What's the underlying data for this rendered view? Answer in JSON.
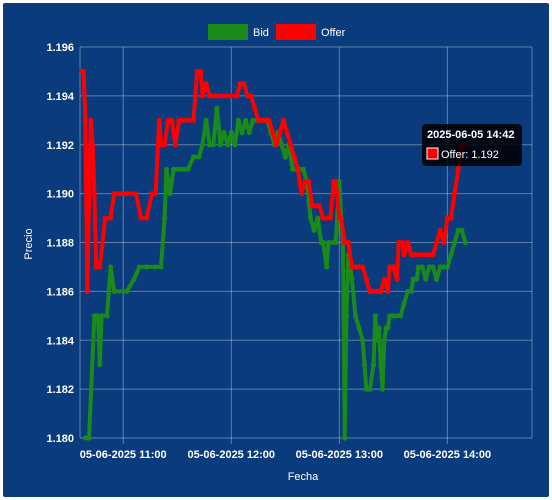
{
  "chart_data": {
    "type": "line",
    "xlabel": "Fecha",
    "ylabel": "Precio",
    "ylim": [
      1.18,
      1.196
    ],
    "yticks": [
      "1.180",
      "1.182",
      "1.184",
      "1.186",
      "1.188",
      "1.190",
      "1.192",
      "1.194",
      "1.196"
    ],
    "xlim": [
      "10:36",
      "14:47"
    ],
    "xticks": [
      {
        "time": "11:00",
        "label": "05-06-2025 11:00"
      },
      {
        "time": "12:00",
        "label": "05-06-2025 12:00"
      },
      {
        "time": "13:00",
        "label": "05-06-2025 13:00"
      },
      {
        "time": "14:00",
        "label": "05-06-2025 14:00"
      }
    ],
    "grid": true,
    "legend_position": "top-center",
    "series": [
      {
        "name": "Bid",
        "color": "#1a8a1a",
        "points": [
          [
            "10:39",
            1.18
          ],
          [
            "10:41",
            1.18
          ],
          [
            "10:44",
            1.185
          ],
          [
            "10:46",
            1.185
          ],
          [
            "10:47",
            1.183
          ],
          [
            "10:48",
            1.185
          ],
          [
            "10:51",
            1.185
          ],
          [
            "10:53",
            1.187
          ],
          [
            "10:55",
            1.186
          ],
          [
            "11:02",
            1.186
          ],
          [
            "11:06",
            1.1865
          ],
          [
            "11:09",
            1.187
          ],
          [
            "11:13",
            1.187
          ],
          [
            "11:18",
            1.187
          ],
          [
            "11:21",
            1.187
          ],
          [
            "11:23",
            1.189
          ],
          [
            "11:24",
            1.191
          ],
          [
            "11:26",
            1.19
          ],
          [
            "11:28",
            1.191
          ],
          [
            "11:31",
            1.191
          ],
          [
            "11:34",
            1.191
          ],
          [
            "11:36",
            1.191
          ],
          [
            "11:39",
            1.1915
          ],
          [
            "11:42",
            1.1915
          ],
          [
            "11:44",
            1.192
          ],
          [
            "11:46",
            1.193
          ],
          [
            "11:48",
            1.192
          ],
          [
            "11:50",
            1.192
          ],
          [
            "11:52",
            1.1935
          ],
          [
            "11:54",
            1.192
          ],
          [
            "11:56",
            1.1925
          ],
          [
            "11:58",
            1.192
          ],
          [
            "12:00",
            1.1925
          ],
          [
            "12:02",
            1.192
          ],
          [
            "12:04",
            1.193
          ],
          [
            "12:06",
            1.1925
          ],
          [
            "12:08",
            1.193
          ],
          [
            "12:10",
            1.1925
          ],
          [
            "12:12",
            1.193
          ],
          [
            "12:14",
            1.193
          ],
          [
            "12:16",
            1.193
          ],
          [
            "12:18",
            1.193
          ],
          [
            "12:20",
            1.193
          ],
          [
            "12:22",
            1.1925
          ],
          [
            "12:24",
            1.192
          ],
          [
            "12:26",
            1.1925
          ],
          [
            "12:28",
            1.192
          ],
          [
            "12:30",
            1.1915
          ],
          [
            "12:32",
            1.192
          ],
          [
            "12:34",
            1.191
          ],
          [
            "12:36",
            1.191
          ],
          [
            "12:38",
            1.191
          ],
          [
            "12:40",
            1.191
          ],
          [
            "12:42",
            1.1905
          ],
          [
            "12:44",
            1.189
          ],
          [
            "12:46",
            1.1885
          ],
          [
            "12:48",
            1.189
          ],
          [
            "12:50",
            1.188
          ],
          [
            "12:51",
            1.188
          ],
          [
            "12:53",
            1.187
          ],
          [
            "12:54",
            1.188
          ],
          [
            "12:57",
            1.188
          ],
          [
            "12:58",
            1.188
          ],
          [
            "13:00",
            1.1905
          ],
          [
            "13:01",
            1.189
          ],
          [
            "13:02",
            1.188
          ],
          [
            "13:03",
            1.18
          ],
          [
            "13:04",
            1.185
          ],
          [
            "13:05",
            1.1875
          ],
          [
            "13:07",
            1.1865
          ],
          [
            "13:09",
            1.185
          ],
          [
            "13:11",
            1.1845
          ],
          [
            "13:13",
            1.184
          ],
          [
            "13:14",
            1.183
          ],
          [
            "13:15",
            1.182
          ],
          [
            "13:17",
            1.182
          ],
          [
            "13:19",
            1.183
          ],
          [
            "13:20",
            1.185
          ],
          [
            "13:21",
            1.184
          ],
          [
            "13:22",
            1.1845
          ],
          [
            "13:23",
            1.183
          ],
          [
            "13:24",
            1.182
          ],
          [
            "13:25",
            1.184
          ],
          [
            "13:26",
            1.1845
          ],
          [
            "13:27",
            1.1845
          ],
          [
            "13:28",
            1.185
          ],
          [
            "13:30",
            1.185
          ],
          [
            "13:32",
            1.185
          ],
          [
            "13:34",
            1.185
          ],
          [
            "13:36",
            1.1855
          ],
          [
            "13:38",
            1.186
          ],
          [
            "13:40",
            1.186
          ],
          [
            "13:41",
            1.1865
          ],
          [
            "13:43",
            1.1865
          ],
          [
            "13:44",
            1.187
          ],
          [
            "13:46",
            1.187
          ],
          [
            "13:48",
            1.1865
          ],
          [
            "13:50",
            1.187
          ],
          [
            "13:52",
            1.187
          ],
          [
            "13:54",
            1.1865
          ],
          [
            "13:56",
            1.187
          ],
          [
            "13:58",
            1.187
          ],
          [
            "14:00",
            1.187
          ],
          [
            "14:02",
            1.1875
          ],
          [
            "14:04",
            1.188
          ],
          [
            "14:06",
            1.1885
          ],
          [
            "14:08",
            1.1885
          ],
          [
            "14:10",
            1.188
          ]
        ]
      },
      {
        "name": "Offer",
        "color": "#ff0000",
        "points": [
          [
            "10:37",
            1.195
          ],
          [
            "10:38",
            1.195
          ],
          [
            "10:39",
            1.193
          ],
          [
            "10:40",
            1.186
          ],
          [
            "10:42",
            1.193
          ],
          [
            "10:43",
            1.192
          ],
          [
            "10:44",
            1.19
          ],
          [
            "10:45",
            1.187
          ],
          [
            "10:47",
            1.187
          ],
          [
            "10:50",
            1.189
          ],
          [
            "10:53",
            1.189
          ],
          [
            "10:55",
            1.19
          ],
          [
            "10:58",
            1.19
          ],
          [
            "11:02",
            1.19
          ],
          [
            "11:07",
            1.19
          ],
          [
            "11:10",
            1.189
          ],
          [
            "11:13",
            1.189
          ],
          [
            "11:16",
            1.19
          ],
          [
            "11:18",
            1.19
          ],
          [
            "11:20",
            1.193
          ],
          [
            "11:21",
            1.192
          ],
          [
            "11:23",
            1.192
          ],
          [
            "11:25",
            1.193
          ],
          [
            "11:27",
            1.193
          ],
          [
            "11:29",
            1.192
          ],
          [
            "11:31",
            1.193
          ],
          [
            "11:33",
            1.193
          ],
          [
            "11:36",
            1.193
          ],
          [
            "11:39",
            1.193
          ],
          [
            "11:41",
            1.195
          ],
          [
            "11:43",
            1.195
          ],
          [
            "11:44",
            1.194
          ],
          [
            "11:46",
            1.1945
          ],
          [
            "11:48",
            1.194
          ],
          [
            "11:51",
            1.194
          ],
          [
            "11:54",
            1.194
          ],
          [
            "11:57",
            1.194
          ],
          [
            "12:00",
            1.194
          ],
          [
            "12:03",
            1.194
          ],
          [
            "12:05",
            1.1945
          ],
          [
            "12:07",
            1.1945
          ],
          [
            "12:09",
            1.194
          ],
          [
            "12:11",
            1.194
          ],
          [
            "12:13",
            1.1935
          ],
          [
            "12:15",
            1.193
          ],
          [
            "12:17",
            1.193
          ],
          [
            "12:19",
            1.193
          ],
          [
            "12:21",
            1.193
          ],
          [
            "12:23",
            1.1925
          ],
          [
            "12:25",
            1.192
          ],
          [
            "12:27",
            1.1925
          ],
          [
            "12:29",
            1.193
          ],
          [
            "12:31",
            1.1925
          ],
          [
            "12:33",
            1.192
          ],
          [
            "12:35",
            1.1915
          ],
          [
            "12:37",
            1.191
          ],
          [
            "12:39",
            1.19
          ],
          [
            "12:41",
            1.1905
          ],
          [
            "12:43",
            1.1905
          ],
          [
            "12:45",
            1.1895
          ],
          [
            "12:47",
            1.1895
          ],
          [
            "12:49",
            1.1895
          ],
          [
            "12:51",
            1.189
          ],
          [
            "12:53",
            1.189
          ],
          [
            "12:55",
            1.189
          ],
          [
            "12:57",
            1.1905
          ],
          [
            "12:58",
            1.1905
          ],
          [
            "13:00",
            1.189
          ],
          [
            "13:01",
            1.189
          ],
          [
            "13:03",
            1.188
          ],
          [
            "13:05",
            1.188
          ],
          [
            "13:07",
            1.187
          ],
          [
            "13:09",
            1.187
          ],
          [
            "13:11",
            1.187
          ],
          [
            "13:13",
            1.187
          ],
          [
            "13:15",
            1.1865
          ],
          [
            "13:17",
            1.186
          ],
          [
            "13:19",
            1.186
          ],
          [
            "13:21",
            1.186
          ],
          [
            "13:23",
            1.186
          ],
          [
            "13:25",
            1.1865
          ],
          [
            "13:27",
            1.186
          ],
          [
            "13:28",
            1.187
          ],
          [
            "13:30",
            1.187
          ],
          [
            "13:32",
            1.1865
          ],
          [
            "13:33",
            1.188
          ],
          [
            "13:35",
            1.188
          ],
          [
            "13:36",
            1.1875
          ],
          [
            "13:38",
            1.188
          ],
          [
            "13:40",
            1.1875
          ],
          [
            "13:42",
            1.1875
          ],
          [
            "13:44",
            1.1875
          ],
          [
            "13:46",
            1.1875
          ],
          [
            "13:48",
            1.1875
          ],
          [
            "13:50",
            1.1875
          ],
          [
            "13:52",
            1.1875
          ],
          [
            "13:54",
            1.188
          ],
          [
            "13:56",
            1.1885
          ],
          [
            "13:58",
            1.188
          ],
          [
            "14:00",
            1.189
          ],
          [
            "14:02",
            1.189
          ],
          [
            "14:04",
            1.19
          ],
          [
            "14:06",
            1.191
          ],
          [
            "14:08",
            1.192
          ],
          [
            "14:10",
            1.192
          ]
        ]
      }
    ],
    "tooltip": {
      "title": "2025-06-05 14:42",
      "series_name": "Offer",
      "value": 1.192,
      "label": "Offer: 1.192",
      "anchor_time": "14:10"
    }
  }
}
